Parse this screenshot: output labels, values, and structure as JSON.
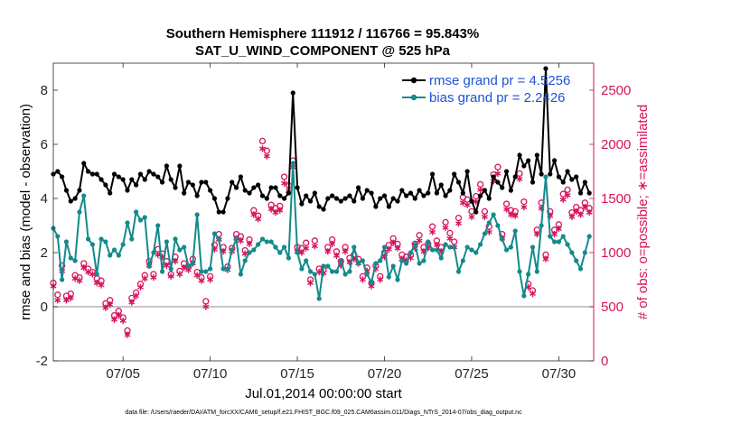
{
  "chart_data": {
    "type": "line",
    "title": "Southern Hemisphere 111912 / 116766 = 95.843%",
    "subtitle": "SAT_U_WIND_COMPONENT @ 525 hPa",
    "xlabel": "Jul.01,2014 00:00:00 start",
    "ylabel": "rmse and bias (model - observation)",
    "y2label": "# of obs: o=possible; ∗=assimilated",
    "footnote": "data file: /Users/raeder/DAI/ATM_forcXX/CAM6_setup/f.e21.FHIST_BGC.f09_025.CAM6assim.011/Diags_NTrS_2014-07/obs_diag_output.nc",
    "x_tick_labels": [
      "07/05",
      "07/10",
      "07/15",
      "07/20",
      "07/25",
      "07/30"
    ],
    "x_tick_values": [
      5,
      10,
      15,
      20,
      25,
      30
    ],
    "xlim": [
      1,
      32
    ],
    "ylim": [
      -2,
      9
    ],
    "y_ticks": [
      "-2",
      "0",
      "2",
      "4",
      "6",
      "8"
    ],
    "y2lim": [
      0,
      2750
    ],
    "y2_ticks": [
      "0",
      "500",
      "1000",
      "1500",
      "2000",
      "2500"
    ],
    "colors": {
      "rmse": "#000000",
      "bias": "#138a8c",
      "obs": "#d6135d",
      "zero": "#b3b3b3",
      "legend_text": "#1f52d6"
    },
    "legend": [
      "rmse grand pr = 4.5256",
      "bias grand pr = 2.2426"
    ],
    "series": [
      {
        "name": "rmse grand pr = 4.5256",
        "axis": "left",
        "x": [
          1.0,
          1.25,
          1.5,
          1.75,
          2.0,
          2.25,
          2.5,
          2.75,
          3.0,
          3.25,
          3.5,
          3.75,
          4.0,
          4.25,
          4.5,
          4.75,
          5.0,
          5.25,
          5.5,
          5.75,
          6.0,
          6.25,
          6.5,
          6.75,
          7.0,
          7.25,
          7.5,
          7.75,
          8.0,
          8.25,
          8.5,
          8.75,
          9.0,
          9.25,
          9.5,
          9.75,
          10.0,
          10.25,
          10.5,
          10.75,
          11.0,
          11.25,
          11.5,
          11.75,
          12.0,
          12.25,
          12.5,
          12.75,
          13.0,
          13.25,
          13.5,
          13.75,
          14.0,
          14.25,
          14.5,
          14.75,
          15.0,
          15.25,
          15.5,
          15.75,
          16.0,
          16.25,
          16.5,
          16.75,
          17.0,
          17.25,
          17.5,
          17.75,
          18.0,
          18.25,
          18.5,
          18.75,
          19.0,
          19.25,
          19.5,
          19.75,
          20.0,
          20.25,
          20.5,
          20.75,
          21.0,
          21.25,
          21.5,
          21.75,
          22.0,
          22.25,
          22.5,
          22.75,
          23.0,
          23.25,
          23.5,
          23.75,
          24.0,
          24.25,
          24.5,
          24.75,
          25.0,
          25.25,
          25.5,
          25.75,
          26.0,
          26.25,
          26.5,
          26.75,
          27.0,
          27.25,
          27.5,
          27.75,
          28.0,
          28.25,
          28.5,
          28.75,
          29.0,
          29.25,
          29.5,
          29.75,
          30.0,
          30.25,
          30.5,
          30.75,
          31.0,
          31.25,
          31.5,
          31.75
        ],
        "values": [
          4.9,
          5.0,
          4.8,
          4.3,
          3.9,
          4.0,
          4.3,
          5.3,
          5.0,
          4.9,
          4.9,
          4.7,
          4.5,
          4.2,
          4.9,
          4.8,
          4.7,
          4.3,
          4.7,
          4.5,
          4.9,
          4.7,
          5.0,
          4.9,
          4.8,
          4.6,
          5.2,
          4.7,
          4.4,
          5.2,
          4.2,
          4.6,
          4.5,
          4.1,
          4.6,
          4.6,
          4.3,
          4.0,
          3.5,
          3.5,
          4.0,
          4.6,
          4.4,
          4.8,
          4.3,
          4.2,
          4.4,
          4.5,
          4.1,
          4.0,
          4.4,
          4.4,
          4.1,
          4.0,
          4.2,
          7.9,
          4.4,
          3.8,
          4.1,
          3.9,
          4.2,
          3.7,
          3.6,
          4.0,
          4.1,
          4.0,
          3.9,
          4.0,
          4.1,
          3.9,
          4.4,
          4.0,
          4.3,
          4.2,
          3.7,
          4.0,
          4.1,
          3.7,
          4.0,
          3.9,
          4.3,
          4.1,
          4.2,
          4.0,
          4.3,
          4.1,
          4.2,
          4.9,
          4.2,
          4.5,
          4.1,
          4.3,
          4.9,
          4.6,
          4.2,
          5.0,
          3.9,
          3.5,
          4.1,
          4.3,
          4.0,
          4.8,
          4.6,
          4.4,
          5.0,
          4.3,
          4.8,
          5.6,
          5.2,
          5.4,
          4.6,
          5.6,
          4.9,
          8.8,
          4.9,
          5.4,
          4.8,
          4.6,
          5.0,
          4.7,
          4.8,
          4.2,
          4.6,
          4.2
        ]
      },
      {
        "name": "bias grand pr = 2.2426",
        "axis": "left",
        "x": [
          1.0,
          1.25,
          1.5,
          1.75,
          2.0,
          2.25,
          2.5,
          2.75,
          3.0,
          3.25,
          3.5,
          3.75,
          4.0,
          4.25,
          4.5,
          4.75,
          5.0,
          5.25,
          5.5,
          5.75,
          6.0,
          6.25,
          6.5,
          6.75,
          7.0,
          7.25,
          7.5,
          7.75,
          8.0,
          8.25,
          8.5,
          8.75,
          9.0,
          9.25,
          9.5,
          9.75,
          10.0,
          10.25,
          10.5,
          10.75,
          11.0,
          11.25,
          11.5,
          11.75,
          12.0,
          12.25,
          12.5,
          12.75,
          13.0,
          13.25,
          13.5,
          13.75,
          14.0,
          14.25,
          14.5,
          14.75,
          15.0,
          15.25,
          15.5,
          15.75,
          16.0,
          16.25,
          16.5,
          16.75,
          17.0,
          17.25,
          17.5,
          17.75,
          18.0,
          18.25,
          18.5,
          18.75,
          19.0,
          19.25,
          19.5,
          19.75,
          20.0,
          20.25,
          20.5,
          20.75,
          21.0,
          21.25,
          21.5,
          21.75,
          22.0,
          22.25,
          22.5,
          22.75,
          23.0,
          23.25,
          23.5,
          23.75,
          24.0,
          24.25,
          24.5,
          24.75,
          25.0,
          25.25,
          25.5,
          25.75,
          26.0,
          26.25,
          26.5,
          26.75,
          27.0,
          27.25,
          27.5,
          27.75,
          28.0,
          28.25,
          28.5,
          28.75,
          29.0,
          29.25,
          29.5,
          29.75,
          30.0,
          30.25,
          30.5,
          30.75,
          31.0,
          31.25,
          31.5,
          31.75
        ],
        "values": [
          2.9,
          2.6,
          1.0,
          2.4,
          1.8,
          1.7,
          3.5,
          4.1,
          2.5,
          2.3,
          1.2,
          2.5,
          2.4,
          1.9,
          2.1,
          1.9,
          2.3,
          3.1,
          2.5,
          3.5,
          3.2,
          3.3,
          1.5,
          2.0,
          3.0,
          1.3,
          2.4,
          1.4,
          2.5,
          2.1,
          2.2,
          1.5,
          1.6,
          3.4,
          1.3,
          1.3,
          1.4,
          2.7,
          2.5,
          1.4,
          1.4,
          2.1,
          2.5,
          1.2,
          1.7,
          2.0,
          2.1,
          2.3,
          2.5,
          2.4,
          2.4,
          2.2,
          2.0,
          2.2,
          1.8,
          5.3,
          2.0,
          1.4,
          1.7,
          1.3,
          1.2,
          0.3,
          1.5,
          1.5,
          1.3,
          1.3,
          1.7,
          1.2,
          1.3,
          2.2,
          1.6,
          1.7,
          1.2,
          0.9,
          1.6,
          1.7,
          2.2,
          1.1,
          1.5,
          1.0,
          1.7,
          1.6,
          2.0,
          2.3,
          1.6,
          1.7,
          2.4,
          2.1,
          2.1,
          1.8,
          2.3,
          2.2,
          2.2,
          1.3,
          1.7,
          2.2,
          2.1,
          2.0,
          2.3,
          2.7,
          3.1,
          3.4,
          3.0,
          2.5,
          2.1,
          2.2,
          2.8,
          1.3,
          0.4,
          1.2,
          2.2,
          1.3,
          3.0,
          4.8,
          2.6,
          2.4,
          2.4,
          2.6,
          2.3,
          2.0,
          1.7,
          1.4,
          2.0,
          2.6
        ]
      },
      {
        "name": "possible",
        "axis": "right",
        "marker": "o",
        "x": [
          1.0,
          1.25,
          1.5,
          1.75,
          2.0,
          2.25,
          2.5,
          2.75,
          3.0,
          3.25,
          3.5,
          3.75,
          4.0,
          4.25,
          4.5,
          4.75,
          5.0,
          5.25,
          5.5,
          5.75,
          6.0,
          6.25,
          6.5,
          6.75,
          7.0,
          7.25,
          7.5,
          7.75,
          8.0,
          8.25,
          8.5,
          8.75,
          9.0,
          9.25,
          9.5,
          9.75,
          10.0,
          10.25,
          10.5,
          10.75,
          11.0,
          11.25,
          11.5,
          11.75,
          12.0,
          12.25,
          12.5,
          12.75,
          13.0,
          13.25,
          13.5,
          13.75,
          14.0,
          14.25,
          14.5,
          14.75,
          15.0,
          15.25,
          15.5,
          15.75,
          16.0,
          16.25,
          16.5,
          16.75,
          17.0,
          17.25,
          17.5,
          17.75,
          18.0,
          18.25,
          18.5,
          18.75,
          19.0,
          19.25,
          19.5,
          19.75,
          20.0,
          20.25,
          20.5,
          20.75,
          21.0,
          21.25,
          21.5,
          21.75,
          22.0,
          22.25,
          22.5,
          22.75,
          23.0,
          23.25,
          23.5,
          23.75,
          24.0,
          24.25,
          24.5,
          24.75,
          25.0,
          25.25,
          25.5,
          25.75,
          26.0,
          26.25,
          26.5,
          26.75,
          27.0,
          27.25,
          27.5,
          27.75,
          28.0,
          28.25,
          28.5,
          28.75,
          29.0,
          29.25,
          29.5,
          29.75,
          30.0,
          30.25,
          30.5,
          30.75,
          31.0,
          31.25,
          31.5,
          31.75
        ],
        "values": [
          720,
          610,
          880,
          600,
          620,
          790,
          770,
          900,
          850,
          820,
          760,
          740,
          530,
          560,
          420,
          460,
          400,
          280,
          580,
          630,
          710,
          790,
          920,
          800,
          1030,
          990,
          920,
          800,
          960,
          830,
          900,
          870,
          940,
          820,
          770,
          550,
          780,
          1070,
          1170,
          1050,
          870,
          1040,
          1170,
          1150,
          1020,
          1120,
          1390,
          1340,
          2030,
          1940,
          1440,
          1410,
          1430,
          1700,
          1620,
          1850,
          1050,
          1040,
          1090,
          750,
          1110,
          850,
          840,
          1050,
          1120,
          1010,
          920,
          1050,
          950,
          980,
          940,
          780,
          860,
          720,
          880,
          780,
          1000,
          1070,
          1130,
          1080,
          980,
          960,
          980,
          1080,
          1160,
          1050,
          1080,
          1240,
          1110,
          1050,
          1280,
          1180,
          1100,
          1320,
          1510,
          1490,
          1380,
          1520,
          1630,
          1380,
          1240,
          1720,
          1790,
          1170,
          1450,
          1390,
          1380,
          1730,
          1470,
          710,
          650,
          1210,
          1460,
          980,
          1380,
          1210,
          1260,
          1540,
          1580,
          1370,
          1420,
          1390,
          1460,
          1410
        ]
      },
      {
        "name": "assimilated",
        "axis": "right",
        "marker": "*",
        "x": [
          1.0,
          1.25,
          1.5,
          1.75,
          2.0,
          2.25,
          2.5,
          2.75,
          3.0,
          3.25,
          3.5,
          3.75,
          4.0,
          4.25,
          4.5,
          4.75,
          5.0,
          5.25,
          5.5,
          5.75,
          6.0,
          6.25,
          6.5,
          6.75,
          7.0,
          7.25,
          7.5,
          7.75,
          8.0,
          8.25,
          8.5,
          8.75,
          9.0,
          9.25,
          9.5,
          9.75,
          10.0,
          10.25,
          10.5,
          10.75,
          11.0,
          11.25,
          11.5,
          11.75,
          12.0,
          12.25,
          12.5,
          12.75,
          13.0,
          13.25,
          13.5,
          13.75,
          14.0,
          14.25,
          14.5,
          14.75,
          15.0,
          15.25,
          15.5,
          15.75,
          16.0,
          16.25,
          16.5,
          16.75,
          17.0,
          17.25,
          17.5,
          17.75,
          18.0,
          18.25,
          18.5,
          18.75,
          19.0,
          19.25,
          19.5,
          19.75,
          20.0,
          20.25,
          20.5,
          20.75,
          21.0,
          21.25,
          21.5,
          21.75,
          22.0,
          22.25,
          22.5,
          22.75,
          23.0,
          23.25,
          23.5,
          23.75,
          24.0,
          24.25,
          24.5,
          24.75,
          25.0,
          25.25,
          25.5,
          25.75,
          26.0,
          26.25,
          26.5,
          26.75,
          27.0,
          27.25,
          27.5,
          27.75,
          28.0,
          28.25,
          28.5,
          28.75,
          29.0,
          29.25,
          29.5,
          29.75,
          30.0,
          30.25,
          30.5,
          30.75,
          31.0,
          31.25,
          31.5,
          31.75
        ],
        "values": [
          690,
          560,
          830,
          560,
          580,
          760,
          740,
          860,
          820,
          800,
          720,
          700,
          490,
          520,
          380,
          420,
          370,
          240,
          540,
          600,
          680,
          760,
          880,
          770,
          980,
          960,
          880,
          780,
          920,
          800,
          860,
          840,
          900,
          790,
          740,
          500,
          750,
          1030,
          1120,
          1010,
          840,
          1010,
          1130,
          1110,
          990,
          1080,
          1350,
          1310,
          1960,
          1890,
          1400,
          1370,
          1390,
          1640,
          1570,
          1790,
          1010,
          1000,
          1040,
          720,
          1060,
          820,
          810,
          1010,
          1080,
          970,
          880,
          1010,
          910,
          940,
          900,
          750,
          830,
          690,
          850,
          750,
          960,
          1030,
          1090,
          1040,
          940,
          930,
          950,
          1040,
          1110,
          1010,
          1040,
          1190,
          1070,
          1010,
          1230,
          1130,
          1050,
          1270,
          1460,
          1440,
          1330,
          1470,
          1580,
          1330,
          1190,
          1660,
          1730,
          1130,
          1400,
          1350,
          1340,
          1680,
          1420,
          680,
          620,
          1170,
          1410,
          940,
          1340,
          1170,
          1220,
          1490,
          1530,
          1330,
          1380,
          1350,
          1420,
          1370
        ]
      }
    ]
  }
}
